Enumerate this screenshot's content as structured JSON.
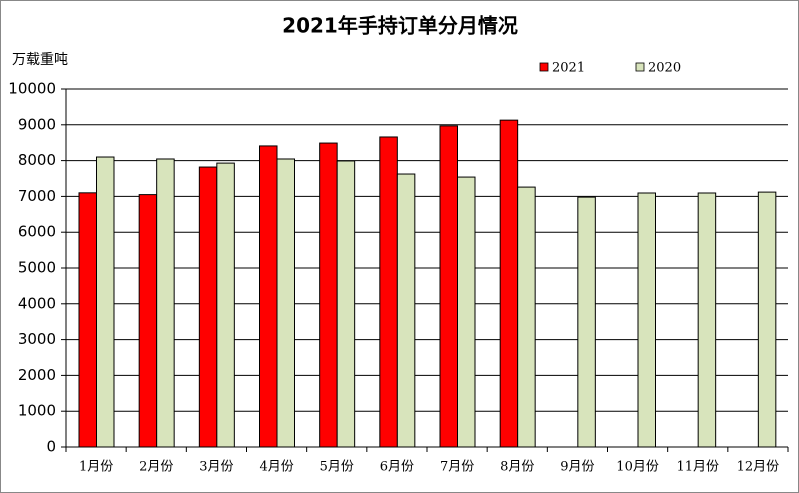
{
  "chart_data": {
    "type": "bar",
    "title": "2021年手持订单分月情况",
    "y_label": "万载重吨",
    "categories": [
      "1月份",
      "2月份",
      "3月份",
      "4月份",
      "5月份",
      "6月份",
      "7月份",
      "8月份",
      "9月份",
      "10月份",
      "11月份",
      "12月份"
    ],
    "series": [
      {
        "name": "2021",
        "color": "#ff0000",
        "values": [
          7100,
          7050,
          7820,
          8410,
          8490,
          8660,
          8970,
          9130,
          null,
          null,
          null,
          null
        ]
      },
      {
        "name": "2020",
        "color": "#d8e4bc",
        "values": [
          8100,
          8045,
          7930,
          8045,
          7990,
          7625,
          7540,
          7260,
          6980,
          7095,
          7095,
          7120
        ]
      }
    ],
    "ylim": [
      0,
      10000
    ],
    "yticks": [
      0,
      1000,
      2000,
      3000,
      4000,
      5000,
      6000,
      7000,
      8000,
      9000,
      10000
    ],
    "grid": true
  }
}
